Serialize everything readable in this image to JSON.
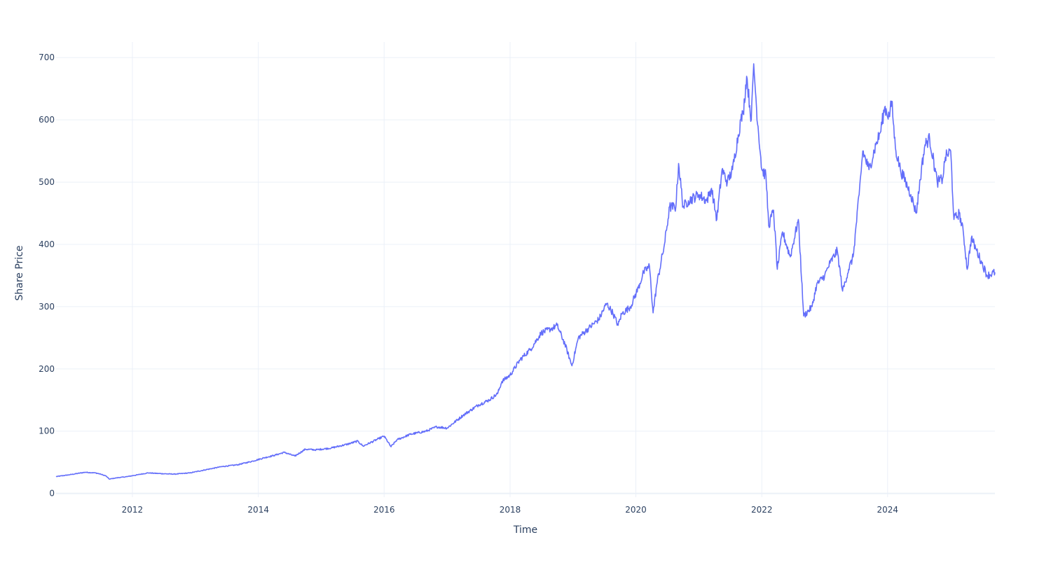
{
  "chart_data": {
    "type": "line",
    "title": "",
    "xlabel": "Time",
    "ylabel": "Share Price",
    "xlim": [
      "2010-10-15",
      "2025-09-15"
    ],
    "ylim": [
      -6,
      725
    ],
    "x_ticks": [
      "2012",
      "2014",
      "2016",
      "2018",
      "2020",
      "2022",
      "2024"
    ],
    "y_ticks": [
      "0",
      "100",
      "200",
      "300",
      "400",
      "500",
      "600",
      "700"
    ],
    "grid": true,
    "legend": "none",
    "colors": {
      "line": "#636efa",
      "grid": "#ebf0f8",
      "zeroline": "#ebf0f8",
      "text": "#2a3f5f"
    },
    "series": [
      {
        "x": [
          "2010-10-15",
          "2011-01-01",
          "2011-04-01",
          "2011-06-01",
          "2011-07-01",
          "2011-08-01",
          "2011-08-20",
          "2011-10-01",
          "2011-12-01",
          "2012-02-01",
          "2012-04-01",
          "2012-06-01",
          "2012-09-01",
          "2012-12-01",
          "2013-03-01",
          "2013-06-01",
          "2013-09-01",
          "2013-12-01",
          "2014-02-01",
          "2014-04-01",
          "2014-06-01",
          "2014-08-01",
          "2014-10-01",
          "2014-12-01",
          "2015-03-01",
          "2015-06-01",
          "2015-08-01",
          "2015-09-01",
          "2015-12-01",
          "2016-01-01",
          "2016-02-10",
          "2016-03-15",
          "2016-06-01",
          "2016-09-01",
          "2016-11-01",
          "2017-01-01",
          "2017-04-01",
          "2017-07-01",
          "2017-09-01",
          "2017-10-20",
          "2017-11-15",
          "2018-01-01",
          "2018-03-01",
          "2018-05-01",
          "2018-07-01",
          "2018-09-01",
          "2018-10-01",
          "2018-11-15",
          "2018-12-26",
          "2019-02-01",
          "2019-04-01",
          "2019-06-01",
          "2019-07-15",
          "2019-08-20",
          "2019-09-20",
          "2019-10-10",
          "2019-12-01",
          "2020-01-15",
          "2020-02-15",
          "2020-03-20",
          "2020-04-10",
          "2020-05-01",
          "2020-06-15",
          "2020-07-15",
          "2020-08-20",
          "2020-09-05",
          "2020-10-01",
          "2020-11-01",
          "2021-01-01",
          "2021-02-15",
          "2021-03-15",
          "2021-04-15",
          "2021-05-15",
          "2021-06-15",
          "2021-07-15",
          "2021-09-01",
          "2021-09-15",
          "2021-10-05",
          "2021-11-01",
          "2021-11-15",
          "2021-12-01",
          "2022-01-01",
          "2022-01-25",
          "2022-02-10",
          "2022-03-10",
          "2022-04-01",
          "2022-05-01",
          "2022-06-15",
          "2022-08-01",
          "2022-09-01",
          "2022-10-20",
          "2022-11-15",
          "2023-01-01",
          "2023-02-01",
          "2023-03-15",
          "2023-04-15",
          "2023-05-20",
          "2023-06-15",
          "2023-07-20",
          "2023-08-10",
          "2023-09-15",
          "2023-10-25",
          "2023-11-20",
          "2023-12-15",
          "2024-01-10",
          "2024-01-25",
          "2024-02-15",
          "2024-03-15",
          "2024-04-15",
          "2024-05-15",
          "2024-06-15",
          "2024-07-15",
          "2024-08-05",
          "2024-09-01",
          "2024-10-15",
          "2024-11-15",
          "2024-12-01",
          "2025-01-01",
          "2025-01-20",
          "2025-02-20",
          "2025-03-15",
          "2025-04-07",
          "2025-05-01",
          "2025-06-01",
          "2025-07-01",
          "2025-08-01",
          "2025-09-15"
        ],
        "y": [
          27,
          30,
          34,
          33,
          31,
          28,
          23,
          25,
          27,
          30,
          33,
          32,
          31,
          33,
          38,
          43,
          46,
          52,
          57,
          61,
          66,
          60,
          71,
          70,
          73,
          79,
          84,
          76,
          88,
          92,
          75,
          86,
          95,
          100,
          107,
          105,
          125,
          142,
          150,
          160,
          180,
          190,
          215,
          232,
          258,
          265,
          270,
          240,
          205,
          250,
          265,
          280,
          305,
          290,
          270,
          288,
          300,
          330,
          355,
          365,
          290,
          335,
          400,
          460,
          460,
          530,
          460,
          470,
          480,
          470,
          490,
          440,
          520,
          500,
          520,
          600,
          610,
          670,
          600,
          690,
          620,
          520,
          510,
          430,
          455,
          360,
          420,
          380,
          440,
          285,
          300,
          335,
          350,
          370,
          390,
          325,
          360,
          380,
          480,
          550,
          520,
          560,
          580,
          620,
          605,
          630,
          555,
          520,
          500,
          480,
          450,
          520,
          560,
          570,
          500,
          505,
          540,
          550,
          440,
          450,
          420,
          360,
          410,
          390,
          370,
          350,
          355
        ]
      }
    ]
  }
}
